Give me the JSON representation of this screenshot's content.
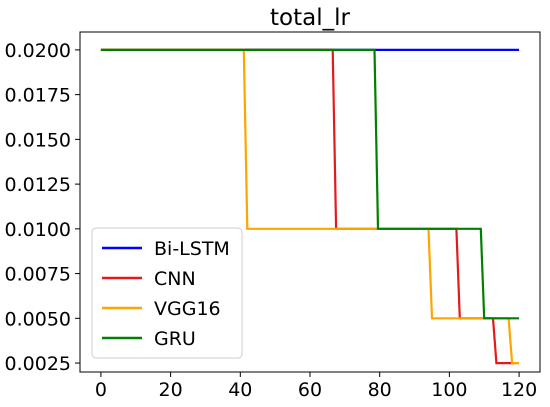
{
  "chart_data": {
    "type": "line",
    "title": "total_lr",
    "xlabel": "",
    "ylabel": "",
    "xlim": [
      -6,
      126
    ],
    "ylim": [
      0.002,
      0.021
    ],
    "xticks": [
      0,
      20,
      40,
      60,
      80,
      100,
      120
    ],
    "yticks": [
      0.0025,
      0.005,
      0.0075,
      0.01,
      0.0125,
      0.015,
      0.0175,
      0.02
    ],
    "ytick_labels": [
      "0.0025",
      "0.0050",
      "0.0075",
      "0.0100",
      "0.0125",
      "0.0150",
      "0.0175",
      "0.0200"
    ],
    "xtick_labels": [
      "0",
      "20",
      "40",
      "60",
      "80",
      "100",
      "120"
    ],
    "grid": false,
    "legend_position": "lower-left",
    "series": [
      {
        "name": "Bi-LSTM",
        "color": "#0000ff",
        "points": [
          [
            0,
            0.02
          ],
          [
            120,
            0.02
          ]
        ]
      },
      {
        "name": "CNN",
        "color": "#e31a1c",
        "points": [
          [
            0,
            0.02
          ],
          [
            66.5,
            0.02
          ],
          [
            67.5,
            0.01
          ],
          [
            102,
            0.01
          ],
          [
            103,
            0.005
          ],
          [
            112.5,
            0.005
          ],
          [
            113.5,
            0.0025
          ],
          [
            119,
            0.0025
          ]
        ]
      },
      {
        "name": "VGG16",
        "color": "#ffa500",
        "points": [
          [
            0,
            0.02
          ],
          [
            41,
            0.02
          ],
          [
            42,
            0.01
          ],
          [
            94,
            0.01
          ],
          [
            95,
            0.005
          ],
          [
            117,
            0.005
          ],
          [
            118,
            0.0025
          ],
          [
            120,
            0.0025
          ]
        ]
      },
      {
        "name": "GRU",
        "color": "#008000",
        "points": [
          [
            0,
            0.02
          ],
          [
            78.5,
            0.02
          ],
          [
            79.5,
            0.01
          ],
          [
            109,
            0.01
          ],
          [
            110,
            0.005
          ],
          [
            120,
            0.005
          ]
        ]
      }
    ]
  }
}
